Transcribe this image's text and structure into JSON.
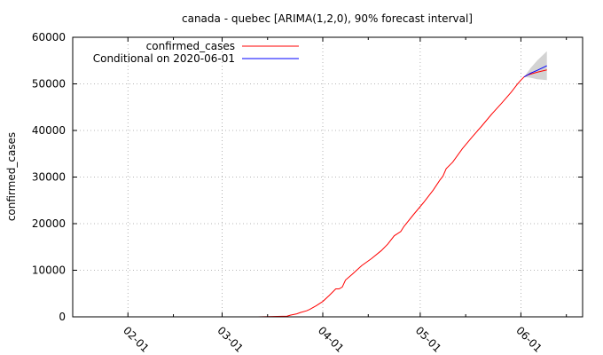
{
  "chart_data": {
    "type": "line",
    "title": "canada - quebec [ARIMA(1,2,0), 90% forecast interval]",
    "xlabel": "",
    "ylabel": "confirmed_cases",
    "xlim": [
      "2020-01-15",
      "2020-06-20"
    ],
    "ylim": [
      0,
      60000
    ],
    "y_ticks": [
      0,
      10000,
      20000,
      30000,
      40000,
      50000,
      60000
    ],
    "x_ticks": [
      {
        "date": "2020-02-01",
        "label": "02-01"
      },
      {
        "date": "2020-03-01",
        "label": "03-01"
      },
      {
        "date": "2020-04-01",
        "label": "04-01"
      },
      {
        "date": "2020-05-01",
        "label": "05-01"
      },
      {
        "date": "2020-06-01",
        "label": "06-01"
      }
    ],
    "grid": true,
    "legend_position": "top-left",
    "series": [
      {
        "name": "confirmed_cases",
        "color": "#ff0000",
        "points": [
          [
            "2020-03-12",
            0
          ],
          [
            "2020-03-15",
            50
          ],
          [
            "2020-03-18",
            100
          ],
          [
            "2020-03-21",
            150
          ],
          [
            "2020-03-22",
            350
          ],
          [
            "2020-03-24",
            650
          ],
          [
            "2020-03-25",
            900
          ],
          [
            "2020-03-27",
            1300
          ],
          [
            "2020-03-28",
            1600
          ],
          [
            "2020-03-30",
            2400
          ],
          [
            "2020-04-01",
            3300
          ],
          [
            "2020-04-03",
            4600
          ],
          [
            "2020-04-05",
            6000
          ],
          [
            "2020-04-06",
            6000
          ],
          [
            "2020-04-07",
            6400
          ],
          [
            "2020-04-08",
            7900
          ],
          [
            "2020-04-10",
            9100
          ],
          [
            "2020-04-13",
            11000
          ],
          [
            "2020-04-16",
            12500
          ],
          [
            "2020-04-19",
            14200
          ],
          [
            "2020-04-21",
            15600
          ],
          [
            "2020-04-23",
            17400
          ],
          [
            "2020-04-25",
            18300
          ],
          [
            "2020-04-26",
            19400
          ],
          [
            "2020-04-29",
            22000
          ],
          [
            "2020-05-02",
            24500
          ],
          [
            "2020-05-05",
            27200
          ],
          [
            "2020-05-07",
            29300
          ],
          [
            "2020-05-08",
            30200
          ],
          [
            "2020-05-09",
            31800
          ],
          [
            "2020-05-11",
            33200
          ],
          [
            "2020-05-14",
            36100
          ],
          [
            "2020-05-17",
            38600
          ],
          [
            "2020-05-20",
            41000
          ],
          [
            "2020-05-23",
            43500
          ],
          [
            "2020-05-26",
            45800
          ],
          [
            "2020-05-29",
            48200
          ],
          [
            "2020-05-31",
            50000
          ],
          [
            "2020-06-01",
            50800
          ],
          [
            "2020-06-02",
            51500
          ],
          [
            "2020-06-03",
            51900
          ],
          [
            "2020-06-06",
            52500
          ],
          [
            "2020-06-09",
            53000
          ]
        ]
      },
      {
        "name": "Conditional on 2020-06-01",
        "color": "#0000ff",
        "points": [
          [
            "2020-06-02",
            51500
          ],
          [
            "2020-06-04",
            52300
          ],
          [
            "2020-06-06",
            52900
          ],
          [
            "2020-06-09",
            53900
          ]
        ]
      }
    ],
    "forecast_interval": {
      "color": "#d3d3d3",
      "upper": [
        [
          "2020-06-02",
          51500
        ],
        [
          "2020-06-04",
          53400
        ],
        [
          "2020-06-06",
          55000
        ],
        [
          "2020-06-09",
          57000
        ]
      ],
      "lower": [
        [
          "2020-06-02",
          51500
        ],
        [
          "2020-06-04",
          51300
        ],
        [
          "2020-06-06",
          51000
        ],
        [
          "2020-06-09",
          50800
        ]
      ]
    }
  }
}
